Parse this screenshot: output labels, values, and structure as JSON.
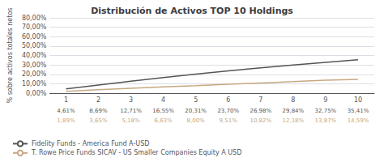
{
  "chart_data": {
    "type": "line",
    "title": "Distribución de Activos TOP 10 Holdings",
    "ylabel": "% sobre activos totales netos",
    "categories": [
      "1",
      "2",
      "3",
      "4",
      "5",
      "6",
      "7",
      "8",
      "9",
      "10"
    ],
    "series": [
      {
        "name": "Fidelity Funds - America Fund A-USD",
        "color": "#555555",
        "values": [
          4.61,
          8.69,
          12.71,
          16.55,
          20.31,
          23.7,
          26.98,
          29.84,
          32.75,
          35.41
        ],
        "value_labels": [
          "4,61%",
          "8,69%",
          "12,71%",
          "16,55%",
          "20,31%",
          "23,70%",
          "26,98%",
          "29,84%",
          "32,75%",
          "35,41%"
        ]
      },
      {
        "name": "T. Rowe Price Funds SICAV - US Smaller Companies Equity A USD",
        "color": "#c8a882",
        "values": [
          1.89,
          3.65,
          5.18,
          6.63,
          8.0,
          9.51,
          10.82,
          12.18,
          13.87,
          14.59
        ],
        "value_labels": [
          "1,89%",
          "3,65%",
          "5,18%",
          "6,63%",
          "8,00%",
          "9,51%",
          "10,82%",
          "12,18%",
          "13,87%",
          "14,59%"
        ]
      }
    ],
    "ylim": [
      0,
      80
    ],
    "yticks": [
      {
        "value": 0,
        "label": "0,00%"
      },
      {
        "value": 10,
        "label": "10,00%"
      },
      {
        "value": 20,
        "label": "20,00%"
      },
      {
        "value": 30,
        "label": "30,00%"
      },
      {
        "value": 40,
        "label": "40,00%"
      },
      {
        "value": 50,
        "label": "50,00%"
      },
      {
        "value": 60,
        "label": "60,00%"
      },
      {
        "value": 70,
        "label": "70,00%"
      },
      {
        "value": 80,
        "label": "80,00%"
      }
    ],
    "grid": true,
    "legend": "bottom left"
  }
}
